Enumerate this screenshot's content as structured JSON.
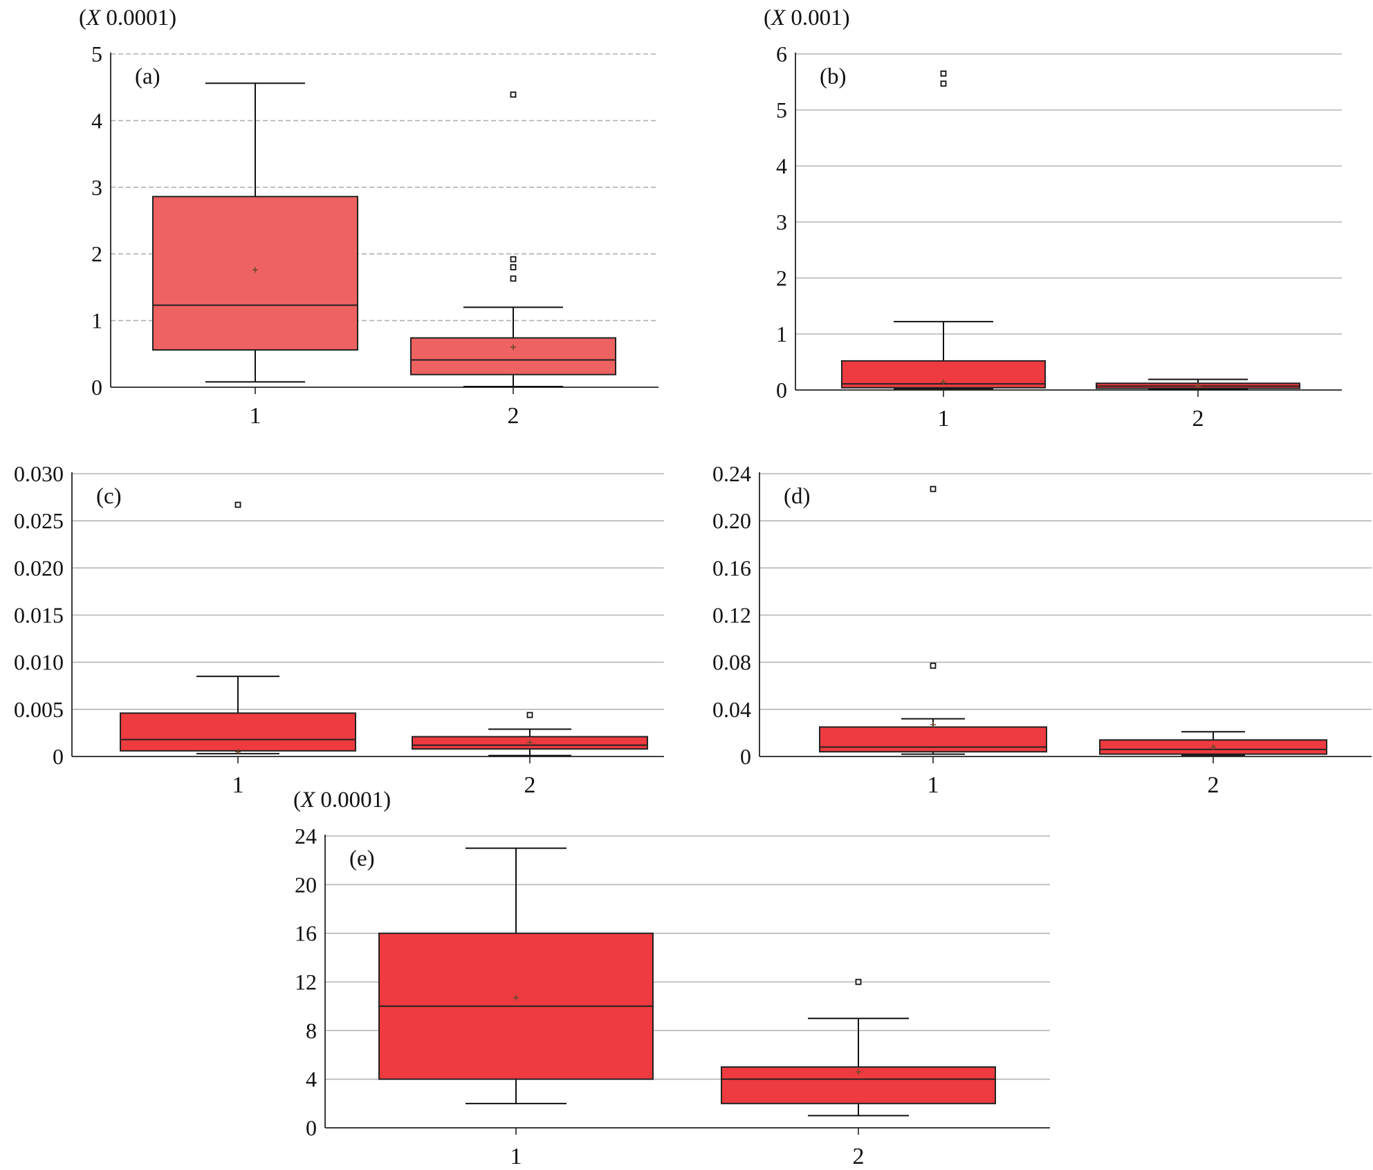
{
  "chart_data": [
    {
      "id": "a",
      "type": "box",
      "panel_label": "(a)",
      "scale_label": "(X 0.0001)",
      "categories": [
        "1",
        "2"
      ],
      "yticks": [
        "0",
        "1",
        "2",
        "3",
        "4",
        "5"
      ],
      "ylim": [
        0,
        5
      ],
      "grid": "dashed",
      "box_color": "#ef6262",
      "boxes": [
        {
          "category": "1",
          "whisker_low": 0.08,
          "q1": 0.56,
          "median": 1.23,
          "q3": 2.86,
          "whisker_high": 4.56,
          "mean": 1.76,
          "outliers": []
        },
        {
          "category": "2",
          "whisker_low": 0.01,
          "q1": 0.19,
          "median": 0.41,
          "q3": 0.74,
          "whisker_high": 1.2,
          "mean": 0.6,
          "outliers": [
            1.63,
            1.8,
            1.92,
            4.39
          ]
        }
      ]
    },
    {
      "id": "b",
      "type": "box",
      "panel_label": "(b)",
      "scale_label": "(X 0.001)",
      "categories": [
        "1",
        "2"
      ],
      "yticks": [
        "0",
        "1",
        "2",
        "3",
        "4",
        "5",
        "6"
      ],
      "ylim": [
        0,
        6
      ],
      "grid": "solid",
      "box_color": "#ee3b40",
      "boxes": [
        {
          "category": "1",
          "whisker_low": 0.02,
          "q1": 0.04,
          "median": 0.11,
          "q3": 0.52,
          "whisker_high": 1.22,
          "mean": 0.14,
          "outliers": [
            5.47,
            5.65
          ]
        },
        {
          "category": "2",
          "whisker_low": 0.01,
          "q1": 0.03,
          "median": 0.07,
          "q3": 0.12,
          "whisker_high": 0.19,
          "mean": 0.07,
          "outliers": []
        }
      ]
    },
    {
      "id": "c",
      "type": "box",
      "panel_label": "(c)",
      "scale_label": "",
      "categories": [
        "1",
        "2"
      ],
      "yticks": [
        "0",
        "0.005",
        "0.010",
        "0.015",
        "0.020",
        "0.025",
        "0.030"
      ],
      "ylim": [
        0,
        0.03
      ],
      "grid": "solid",
      "box_color": "#ee3b40",
      "boxes": [
        {
          "category": "1",
          "whisker_low": 0.0003,
          "q1": 0.0006,
          "median": 0.0018,
          "q3": 0.0046,
          "whisker_high": 0.0085,
          "mean": 0.0005,
          "outliers": [
            0.0267
          ]
        },
        {
          "category": "2",
          "whisker_low": 0.0001,
          "q1": 0.0008,
          "median": 0.0012,
          "q3": 0.0021,
          "whisker_high": 0.0029,
          "mean": 0.0015,
          "outliers": [
            0.0044
          ]
        }
      ]
    },
    {
      "id": "d",
      "type": "box",
      "panel_label": "(d)",
      "scale_label": "",
      "categories": [
        "1",
        "2"
      ],
      "yticks": [
        "0",
        "0.04",
        "0.08",
        "0.12",
        "0.16",
        "0.20",
        "0.24"
      ],
      "ylim": [
        0,
        0.24
      ],
      "grid": "solid",
      "box_color": "#ee3b40",
      "boxes": [
        {
          "category": "1",
          "whisker_low": 0.002,
          "q1": 0.004,
          "median": 0.008,
          "q3": 0.025,
          "whisker_high": 0.032,
          "mean": 0.027,
          "outliers": [
            0.077,
            0.227
          ]
        },
        {
          "category": "2",
          "whisker_low": 0.001,
          "q1": 0.002,
          "median": 0.006,
          "q3": 0.014,
          "whisker_high": 0.021,
          "mean": 0.008,
          "outliers": []
        }
      ]
    },
    {
      "id": "e",
      "type": "box",
      "panel_label": "(e)",
      "scale_label": "(X 0.0001)",
      "categories": [
        "1",
        "2"
      ],
      "yticks": [
        "0",
        "4",
        "8",
        "12",
        "16",
        "20",
        "24"
      ],
      "ylim": [
        0,
        24
      ],
      "grid": "solid",
      "box_color": "#ee3b40",
      "boxes": [
        {
          "category": "1",
          "whisker_low": 2,
          "q1": 4,
          "median": 10,
          "q3": 16,
          "whisker_high": 23,
          "mean": 10.7,
          "outliers": []
        },
        {
          "category": "2",
          "whisker_low": 1,
          "q1": 2,
          "median": 4,
          "q3": 5,
          "whisker_high": 9,
          "mean": 4.6,
          "outliers": [
            12
          ]
        }
      ]
    }
  ]
}
